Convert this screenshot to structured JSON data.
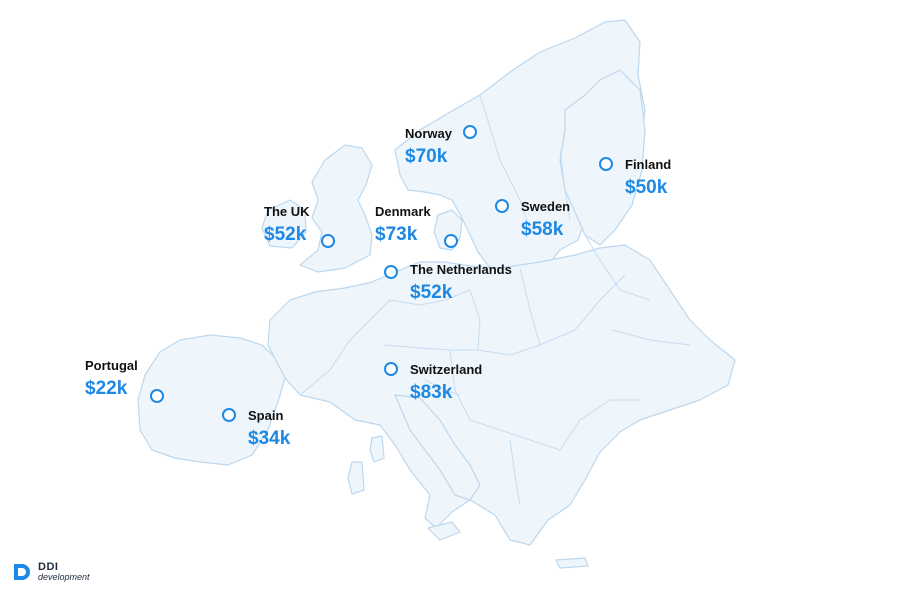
{
  "map": {
    "region": "Europe",
    "colors": {
      "land": "#eef5fb",
      "border": "#bcd8ef",
      "accent": "#1e88e5",
      "text": "#111111"
    },
    "locations": [
      {
        "key": "norway",
        "name": "Norway",
        "salary": "$70k"
      },
      {
        "key": "finland",
        "name": "Finland",
        "salary": "$50k"
      },
      {
        "key": "sweden",
        "name": "Sweden",
        "salary": "$58k"
      },
      {
        "key": "uk",
        "name": "The UK",
        "salary": "$52k"
      },
      {
        "key": "denmark",
        "name": "Denmark",
        "salary": "$73k"
      },
      {
        "key": "netherlands",
        "name": "The Netherlands",
        "salary": "$52k"
      },
      {
        "key": "switzerland",
        "name": "Switzerland",
        "salary": "$83k"
      },
      {
        "key": "portugal",
        "name": "Portugal",
        "salary": "$22k"
      },
      {
        "key": "spain",
        "name": "Spain",
        "salary": "$34k"
      }
    ]
  },
  "logo": {
    "brand": "DDI",
    "subtitle": "development",
    "icon": "ddi-logo-icon"
  }
}
